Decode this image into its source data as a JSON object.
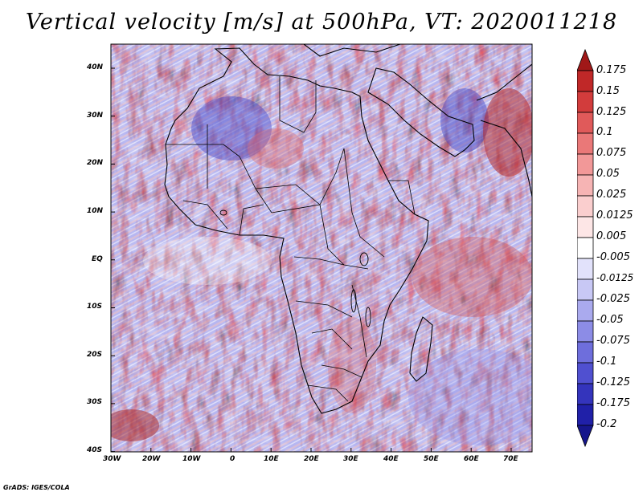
{
  "title": "Vertical velocity [m/s] at 500hPa, VT: 2020011218",
  "lat_labels": [
    "40N",
    "30N",
    "20N",
    "10N",
    "EQ",
    "10S",
    "20S",
    "30S",
    "40S"
  ],
  "lon_labels": [
    "30W",
    "20W",
    "10W",
    "0",
    "10E",
    "20E",
    "30E",
    "40E",
    "50E",
    "60E",
    "70E"
  ],
  "colorbar": {
    "levels": [
      "0.175",
      "0.15",
      "0.125",
      "0.1",
      "0.075",
      "0.05",
      "0.025",
      "0.0125",
      "0.005",
      "-0.005",
      "-0.0125",
      "-0.025",
      "-0.05",
      "-0.075",
      "-0.1",
      "-0.125",
      "-0.175",
      "-0.2"
    ],
    "colors": [
      "#a01818",
      "#c02828",
      "#d23c3c",
      "#e05a5a",
      "#ea7878",
      "#f29898",
      "#f6b4b4",
      "#facece",
      "#fde6e6",
      "#ffffff",
      "#e2e2fb",
      "#c8c8f5",
      "#aaaaee",
      "#8c8ce6",
      "#6e6edc",
      "#5050d0",
      "#3434bc",
      "#2020a8",
      "#16168c"
    ]
  },
  "footer": "GrADS: IGES/COLA"
}
